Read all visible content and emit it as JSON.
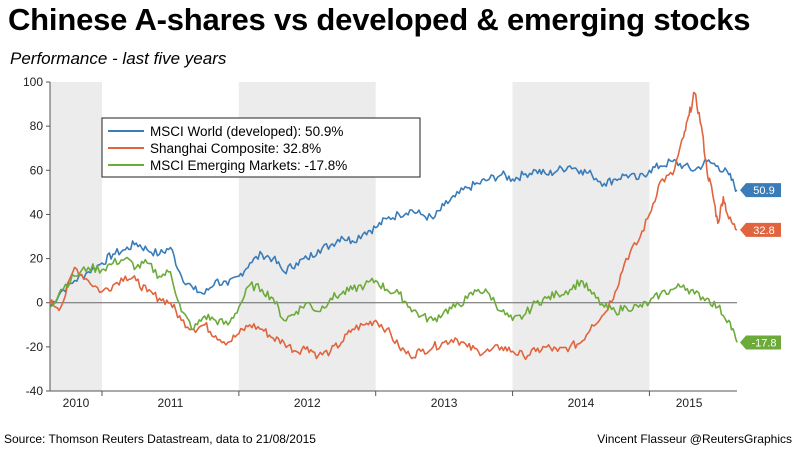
{
  "header": {
    "title": "Chinese A-shares vs developed & emerging stocks",
    "subtitle": "Performance - last five years"
  },
  "footer": {
    "source": "Source: Thomson Reuters Datastream, data to 21/08/2015",
    "credit": "Vincent Flasseur @ReutersGraphics"
  },
  "chart_data": {
    "type": "line",
    "title": "Chinese A-shares vs developed & emerging stocks",
    "subtitle": "Performance - last five years",
    "xlabel": "",
    "ylabel": "",
    "ylim": [
      -40,
      100
    ],
    "xlim": [
      2010.62,
      2015.64
    ],
    "y_ticks": [
      -40,
      -20,
      0,
      20,
      40,
      60,
      80,
      100
    ],
    "x_ticks": [
      {
        "label": "2010",
        "pos": 2010.81
      },
      {
        "label": "2011",
        "pos": 2011.5
      },
      {
        "label": "2012",
        "pos": 2012.5
      },
      {
        "label": "2013",
        "pos": 2013.5
      },
      {
        "label": "2014",
        "pos": 2014.5
      },
      {
        "label": "2015",
        "pos": 2015.29
      }
    ],
    "shaded_years": [
      [
        2010.62,
        2011.0
      ],
      [
        2012.0,
        2013.0
      ],
      [
        2014.0,
        2015.0
      ]
    ],
    "grid": false,
    "legend_position": "top-left",
    "series": [
      {
        "name": "MSCI World (developed): 50.9%",
        "color": "#3a7cb8",
        "end_label": "50.9",
        "x": [
          2010.62,
          2010.7,
          2010.8,
          2010.9,
          2011.0,
          2011.08,
          2011.17,
          2011.25,
          2011.33,
          2011.42,
          2011.5,
          2011.58,
          2011.67,
          2011.75,
          2011.83,
          2011.92,
          2012.0,
          2012.08,
          2012.17,
          2012.25,
          2012.33,
          2012.42,
          2012.5,
          2012.58,
          2012.67,
          2012.75,
          2012.83,
          2012.92,
          2013.0,
          2013.08,
          2013.17,
          2013.25,
          2013.33,
          2013.42,
          2013.5,
          2013.58,
          2013.67,
          2013.75,
          2013.83,
          2013.92,
          2014.0,
          2014.08,
          2014.17,
          2014.25,
          2014.33,
          2014.42,
          2014.5,
          2014.58,
          2014.67,
          2014.75,
          2014.83,
          2014.92,
          2015.0,
          2015.08,
          2015.17,
          2015.25,
          2015.33,
          2015.42,
          2015.5,
          2015.58,
          2015.64
        ],
        "y": [
          -2,
          5,
          10,
          14,
          18,
          22,
          24,
          27,
          24,
          22,
          25,
          12,
          6,
          4,
          10,
          8,
          12,
          18,
          22,
          20,
          14,
          18,
          20,
          24,
          26,
          30,
          28,
          32,
          34,
          38,
          40,
          42,
          40,
          38,
          44,
          48,
          52,
          54,
          56,
          58,
          56,
          58,
          60,
          58,
          60,
          62,
          60,
          58,
          54,
          56,
          58,
          56,
          60,
          62,
          64,
          62,
          60,
          64,
          62,
          58,
          51
        ]
      },
      {
        "name": "Shanghai Composite: 32.8%",
        "color": "#e0653e",
        "end_label": "32.8",
        "x": [
          2010.62,
          2010.7,
          2010.8,
          2010.9,
          2011.0,
          2011.08,
          2011.17,
          2011.25,
          2011.33,
          2011.42,
          2011.5,
          2011.58,
          2011.67,
          2011.75,
          2011.83,
          2011.92,
          2012.0,
          2012.08,
          2012.17,
          2012.25,
          2012.33,
          2012.42,
          2012.5,
          2012.58,
          2012.67,
          2012.75,
          2012.83,
          2012.92,
          2013.0,
          2013.08,
          2013.17,
          2013.25,
          2013.33,
          2013.42,
          2013.5,
          2013.58,
          2013.67,
          2013.75,
          2013.83,
          2013.92,
          2014.0,
          2014.08,
          2014.17,
          2014.25,
          2014.33,
          2014.42,
          2014.5,
          2014.58,
          2014.67,
          2014.75,
          2014.83,
          2014.92,
          2015.0,
          2015.08,
          2015.17,
          2015.25,
          2015.29,
          2015.33,
          2015.38,
          2015.42,
          2015.46,
          2015.5,
          2015.54,
          2015.58,
          2015.64
        ],
        "y": [
          0,
          -2,
          16,
          10,
          5,
          8,
          12,
          10,
          5,
          2,
          0,
          -8,
          -12,
          -10,
          -15,
          -18,
          -14,
          -10,
          -12,
          -16,
          -18,
          -22,
          -20,
          -24,
          -22,
          -18,
          -12,
          -10,
          -8,
          -12,
          -20,
          -24,
          -22,
          -20,
          -18,
          -16,
          -20,
          -22,
          -22,
          -20,
          -22,
          -24,
          -22,
          -20,
          -22,
          -20,
          -18,
          -10,
          -5,
          5,
          20,
          28,
          40,
          55,
          58,
          75,
          85,
          95,
          80,
          60,
          50,
          36,
          48,
          38,
          33
        ]
      },
      {
        "name": "MSCI Emerging Markets: -17.8%",
        "color": "#6cab3a",
        "end_label": "-17.8",
        "x": [
          2010.62,
          2010.7,
          2010.8,
          2010.9,
          2011.0,
          2011.08,
          2011.17,
          2011.25,
          2011.33,
          2011.42,
          2011.5,
          2011.58,
          2011.67,
          2011.75,
          2011.83,
          2011.92,
          2012.0,
          2012.08,
          2012.17,
          2012.25,
          2012.33,
          2012.42,
          2012.5,
          2012.58,
          2012.67,
          2012.75,
          2012.83,
          2012.92,
          2013.0,
          2013.08,
          2013.17,
          2013.25,
          2013.33,
          2013.42,
          2013.5,
          2013.58,
          2013.67,
          2013.75,
          2013.83,
          2013.92,
          2014.0,
          2014.08,
          2014.17,
          2014.25,
          2014.33,
          2014.42,
          2014.5,
          2014.58,
          2014.67,
          2014.75,
          2014.83,
          2014.92,
          2015.0,
          2015.08,
          2015.17,
          2015.25,
          2015.33,
          2015.42,
          2015.5,
          2015.58,
          2015.64
        ],
        "y": [
          -2,
          6,
          12,
          16,
          15,
          18,
          20,
          16,
          18,
          12,
          14,
          -4,
          -12,
          -6,
          -8,
          -10,
          -2,
          8,
          6,
          2,
          -8,
          -4,
          0,
          -4,
          2,
          4,
          6,
          8,
          10,
          6,
          4,
          -2,
          -6,
          -8,
          -4,
          -2,
          2,
          6,
          4,
          -4,
          -8,
          -6,
          0,
          2,
          4,
          6,
          10,
          4,
          -2,
          -4,
          -2,
          -2,
          0,
          4,
          6,
          8,
          4,
          2,
          -2,
          -8,
          -18
        ]
      }
    ]
  }
}
